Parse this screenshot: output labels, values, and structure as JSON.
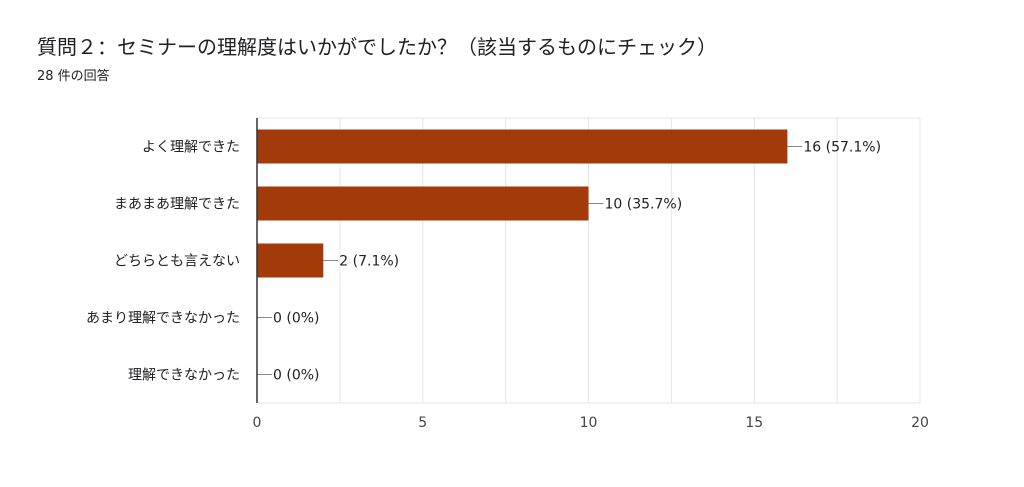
{
  "title": "質問２：セミナーの理解度はいかがでしたか？（該当するものにチェック）",
  "subtitle": "28 件の回答",
  "colors": {
    "bar": "#a33a0a",
    "grid": "#e6e6e6",
    "axis": "#333333",
    "leader": "#888888"
  },
  "chart_data": {
    "type": "bar",
    "orientation": "horizontal",
    "categories": [
      "よく理解できた",
      "まあまあ理解できた",
      "どちらとも言えない",
      "あまり理解できなかった",
      "理解できなかった"
    ],
    "values": [
      16,
      10,
      2,
      0,
      0
    ],
    "value_labels": [
      "16 (57.1%)",
      "10 (35.7%)",
      "2 (7.1%)",
      "0 (0%)",
      "0 (0%)"
    ],
    "xlim": [
      0,
      20
    ],
    "xticks": [
      0,
      5,
      10,
      15,
      20
    ],
    "grid": true,
    "legend": "none"
  }
}
